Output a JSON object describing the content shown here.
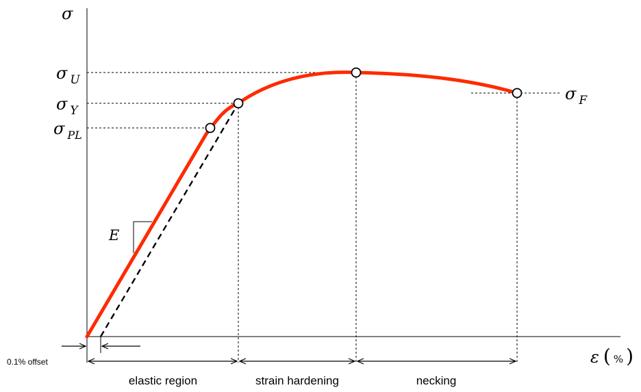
{
  "labels": {
    "stress_axis": "σ",
    "strain_axis_symbol": "ε",
    "strain_axis_unit": "%",
    "ultimate": {
      "symbol": "σ",
      "subscript": "U"
    },
    "yield": {
      "symbol": "σ",
      "subscript": "Y"
    },
    "proportional_limit": {
      "symbol": "σ",
      "subscript": "PL"
    },
    "fracture": {
      "symbol": "σ",
      "subscript": "F"
    },
    "modulus": "E",
    "offset": "0.1% offset"
  },
  "regions": {
    "elastic": "elastic region",
    "strain_hardening": "strain hardening",
    "necking": "necking"
  },
  "colors": {
    "curve": "#ff2a00",
    "lines": "#000000"
  }
}
